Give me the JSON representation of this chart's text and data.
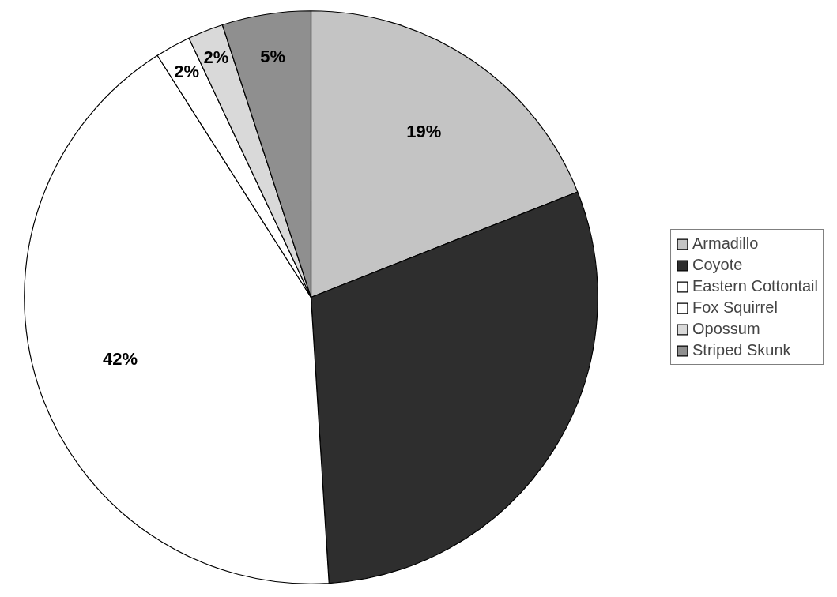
{
  "chart_data": {
    "type": "pie",
    "categories": [
      "Armadillo",
      "Coyote",
      "Eastern Cottontail",
      "Fox Squirrel",
      "Opossum",
      "Striped Skunk"
    ],
    "values": [
      19,
      30,
      42,
      2,
      2,
      5
    ],
    "colors": [
      "#c4c4c4",
      "#2e2e2e",
      "#ffffff",
      "#ffffff",
      "#d9d9d9",
      "#8f8f8f"
    ],
    "value_labels": [
      "19%",
      null,
      "42%",
      "2%",
      "2%",
      "5%"
    ],
    "legend": "right"
  }
}
